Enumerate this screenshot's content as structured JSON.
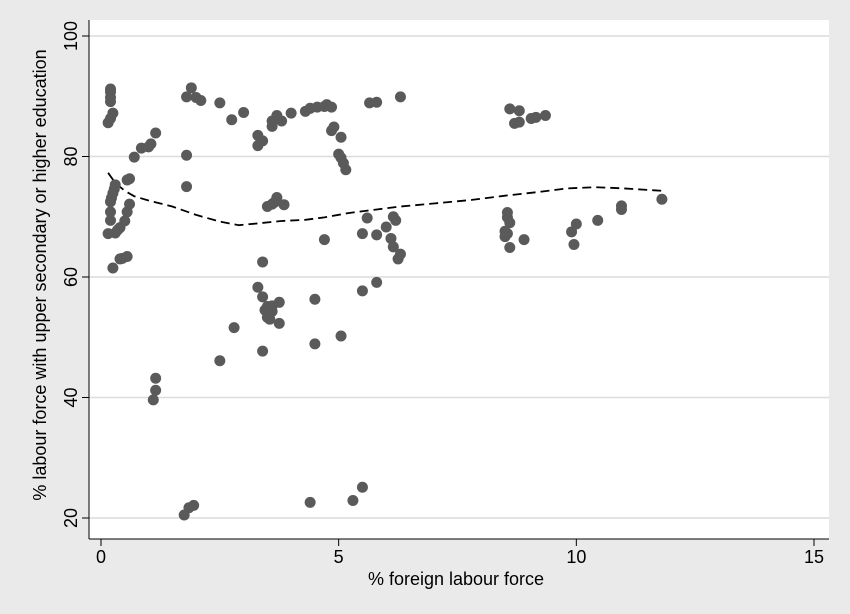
{
  "chart_data": {
    "type": "scatter",
    "title": "",
    "xlabel": "% foreign labour force",
    "ylabel": "% labour force with upper secondary or higher education",
    "xlim": [
      0,
      15
    ],
    "ylim": [
      20,
      100
    ],
    "x_ticks": [
      0,
      5,
      10,
      15
    ],
    "y_ticks": [
      20,
      40,
      60,
      80,
      100
    ],
    "grid": true,
    "legend": "none",
    "colors": {
      "points": "#5a5a5a",
      "fit_line": "#000000",
      "plot_bg": "#ffffff",
      "outer_bg": "#eaeaea",
      "grid": "#dcdcdc"
    },
    "series": [
      {
        "kind": "points",
        "points": [
          [
            0.2,
            91.2
          ],
          [
            0.2,
            90.7
          ],
          [
            0.2,
            89.8
          ],
          [
            0.2,
            89.1
          ],
          [
            0.25,
            87.2
          ],
          [
            0.2,
            86.3
          ],
          [
            0.15,
            85.6
          ],
          [
            0.6,
            76.3
          ],
          [
            0.55,
            76.1
          ],
          [
            0.3,
            75.3
          ],
          [
            0.28,
            74.6
          ],
          [
            0.25,
            73.9
          ],
          [
            0.22,
            73.1
          ],
          [
            0.2,
            72.5
          ],
          [
            0.6,
            72.1
          ],
          [
            0.55,
            70.8
          ],
          [
            0.2,
            70.8
          ],
          [
            0.2,
            69.4
          ],
          [
            0.5,
            69.3
          ],
          [
            0.4,
            68.2
          ],
          [
            0.35,
            67.8
          ],
          [
            0.3,
            67.3
          ],
          [
            0.15,
            67.2
          ],
          [
            0.55,
            63.4
          ],
          [
            0.45,
            63.1
          ],
          [
            0.4,
            63.0
          ],
          [
            0.25,
            61.5
          ],
          [
            0.7,
            79.9
          ],
          [
            0.85,
            81.4
          ],
          [
            1.0,
            81.6
          ],
          [
            1.05,
            82.1
          ],
          [
            1.15,
            83.9
          ],
          [
            1.1,
            39.6
          ],
          [
            1.15,
            41.2
          ],
          [
            1.15,
            43.2
          ],
          [
            1.8,
            89.9
          ],
          [
            1.9,
            91.4
          ],
          [
            2.0,
            89.8
          ],
          [
            2.1,
            89.3
          ],
          [
            2.5,
            88.9
          ],
          [
            2.75,
            86.1
          ],
          [
            3.0,
            87.3
          ],
          [
            1.8,
            80.2
          ],
          [
            1.8,
            75.0
          ],
          [
            1.75,
            20.5
          ],
          [
            1.85,
            21.7
          ],
          [
            1.95,
            22.1
          ],
          [
            2.5,
            46.1
          ],
          [
            2.8,
            51.6
          ],
          [
            3.3,
            83.5
          ],
          [
            3.3,
            81.8
          ],
          [
            3.4,
            82.6
          ],
          [
            3.6,
            85.9
          ],
          [
            3.6,
            85.0
          ],
          [
            3.7,
            86.8
          ],
          [
            3.8,
            85.9
          ],
          [
            4.0,
            87.2
          ],
          [
            4.3,
            87.5
          ],
          [
            4.4,
            88.0
          ],
          [
            4.55,
            88.2
          ],
          [
            4.7,
            88.3
          ],
          [
            4.75,
            88.6
          ],
          [
            4.85,
            88.2
          ],
          [
            4.85,
            84.3
          ],
          [
            4.9,
            84.9
          ],
          [
            5.0,
            80.4
          ],
          [
            5.05,
            79.8
          ],
          [
            5.05,
            83.2
          ],
          [
            5.1,
            78.9
          ],
          [
            5.15,
            77.8
          ],
          [
            5.65,
            88.9
          ],
          [
            5.8,
            89.0
          ],
          [
            6.3,
            89.9
          ],
          [
            3.5,
            71.7
          ],
          [
            3.6,
            72.1
          ],
          [
            3.65,
            72.4
          ],
          [
            3.7,
            73.2
          ],
          [
            3.85,
            72.0
          ],
          [
            3.4,
            62.5
          ],
          [
            3.3,
            58.3
          ],
          [
            3.4,
            56.7
          ],
          [
            3.5,
            55.1
          ],
          [
            3.6,
            55.2
          ],
          [
            3.6,
            54.3
          ],
          [
            3.75,
            55.8
          ],
          [
            3.45,
            54.5
          ],
          [
            3.5,
            53.3
          ],
          [
            3.55,
            53.0
          ],
          [
            3.75,
            52.3
          ],
          [
            3.4,
            47.7
          ],
          [
            4.5,
            56.3
          ],
          [
            4.5,
            48.9
          ],
          [
            4.7,
            66.2
          ],
          [
            5.05,
            50.2
          ],
          [
            5.5,
            67.2
          ],
          [
            5.6,
            69.8
          ],
          [
            5.8,
            67.0
          ],
          [
            6.0,
            68.3
          ],
          [
            6.15,
            70.0
          ],
          [
            6.2,
            69.4
          ],
          [
            6.1,
            66.4
          ],
          [
            6.15,
            65.0
          ],
          [
            6.3,
            63.8
          ],
          [
            6.25,
            63.0
          ],
          [
            5.5,
            57.7
          ],
          [
            5.8,
            59.1
          ],
          [
            4.4,
            22.6
          ],
          [
            5.3,
            22.9
          ],
          [
            5.5,
            25.1
          ],
          [
            8.6,
            87.9
          ],
          [
            8.8,
            87.6
          ],
          [
            8.7,
            85.5
          ],
          [
            8.8,
            85.7
          ],
          [
            9.05,
            86.3
          ],
          [
            9.15,
            86.5
          ],
          [
            9.35,
            86.8
          ],
          [
            8.55,
            70.7
          ],
          [
            8.55,
            69.9
          ],
          [
            8.6,
            69.0
          ],
          [
            8.5,
            67.6
          ],
          [
            8.55,
            67.2
          ],
          [
            8.5,
            66.7
          ],
          [
            8.6,
            64.9
          ],
          [
            8.9,
            66.2
          ],
          [
            9.9,
            67.5
          ],
          [
            10.0,
            68.8
          ],
          [
            9.95,
            65.4
          ],
          [
            10.45,
            69.4
          ],
          [
            10.95,
            71.8
          ],
          [
            10.95,
            71.2
          ],
          [
            11.8,
            72.9
          ]
        ]
      },
      {
        "kind": "fit_line",
        "style": "dashed",
        "points": [
          [
            0.15,
            77.3
          ],
          [
            0.3,
            75.6
          ],
          [
            0.5,
            74.3
          ],
          [
            0.7,
            73.4
          ],
          [
            1.0,
            72.7
          ],
          [
            1.5,
            71.7
          ],
          [
            2.0,
            70.3
          ],
          [
            2.5,
            69.2
          ],
          [
            2.9,
            68.6
          ],
          [
            3.3,
            68.9
          ],
          [
            3.8,
            69.3
          ],
          [
            4.3,
            69.5
          ],
          [
            4.7,
            69.9
          ],
          [
            5.2,
            70.6
          ],
          [
            5.8,
            71.2
          ],
          [
            6.3,
            71.7
          ],
          [
            7.0,
            72.2
          ],
          [
            7.8,
            72.8
          ],
          [
            8.5,
            73.5
          ],
          [
            9.2,
            74.1
          ],
          [
            9.8,
            74.7
          ],
          [
            10.4,
            74.9
          ],
          [
            11.0,
            74.7
          ],
          [
            11.4,
            74.5
          ],
          [
            11.8,
            74.3
          ]
        ]
      }
    ]
  }
}
